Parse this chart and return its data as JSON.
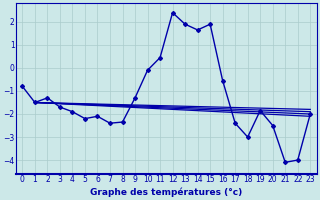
{
  "title": "",
  "xlabel": "Graphe des températures (°c)",
  "ylabel": "",
  "background_color": "#cce8e8",
  "grid_color": "#aacccc",
  "line_color": "#0000aa",
  "xlim_min": -0.5,
  "xlim_max": 23.5,
  "ylim_min": -4.6,
  "ylim_max": 2.8,
  "yticks": [
    -4,
    -3,
    -2,
    -1,
    0,
    1,
    2
  ],
  "xticks": [
    0,
    1,
    2,
    3,
    4,
    5,
    6,
    7,
    8,
    9,
    10,
    11,
    12,
    13,
    14,
    15,
    16,
    17,
    18,
    19,
    20,
    21,
    22,
    23
  ],
  "main_series": [
    [
      0,
      -0.8
    ],
    [
      1,
      -1.5
    ],
    [
      2,
      -1.3
    ],
    [
      3,
      -1.7
    ],
    [
      4,
      -1.9
    ],
    [
      5,
      -2.2
    ],
    [
      6,
      -2.1
    ],
    [
      7,
      -2.4
    ],
    [
      8,
      -2.35
    ],
    [
      9,
      -1.3
    ],
    [
      10,
      -0.1
    ],
    [
      11,
      0.45
    ],
    [
      12,
      2.4
    ],
    [
      13,
      1.9
    ],
    [
      14,
      1.65
    ],
    [
      15,
      1.9
    ],
    [
      16,
      -0.55
    ],
    [
      17,
      -2.4
    ],
    [
      18,
      -3.0
    ],
    [
      19,
      -1.85
    ],
    [
      20,
      -2.5
    ],
    [
      21,
      -4.1
    ],
    [
      22,
      -4.0
    ],
    [
      23,
      -2.0
    ]
  ],
  "flat_lines": [
    {
      "x0": 1,
      "y0": -1.5,
      "x1": 23,
      "y1": -1.8
    },
    {
      "x0": 1,
      "y0": -1.5,
      "x1": 23,
      "y1": -1.9
    },
    {
      "x0": 1,
      "y0": -1.5,
      "x1": 23,
      "y1": -2.0
    },
    {
      "x0": 1,
      "y0": -1.5,
      "x1": 23,
      "y1": -2.1
    }
  ],
  "xlabel_fontsize": 6.5,
  "tick_fontsize": 5.5
}
